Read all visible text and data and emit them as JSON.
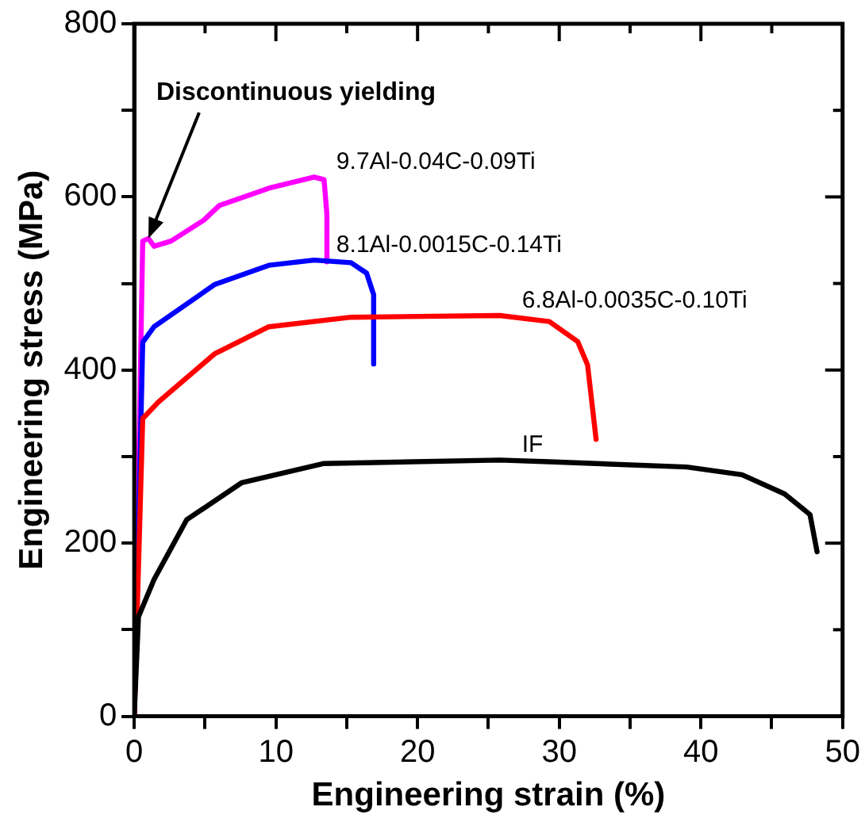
{
  "chart_data": {
    "type": "line",
    "xlabel": "Engineering strain (%)",
    "ylabel": "Engineering stress (MPa)",
    "xlim": [
      0,
      50
    ],
    "xticks": [
      0,
      {
        "value": 5,
        "label": null
      },
      10,
      {
        "value": 15,
        "label": null
      },
      20,
      {
        "value": 25,
        "label": null
      },
      30,
      {
        "value": 35,
        "label": null
      },
      40,
      {
        "value": 45,
        "label": null
      },
      50
    ],
    "ylim": [
      0,
      800
    ],
    "yticks": [
      0,
      {
        "value": 100,
        "label": null
      },
      200,
      {
        "value": 300,
        "label": null
      },
      400,
      {
        "value": 500,
        "label": null
      },
      600,
      {
        "value": 700,
        "label": null
      },
      800
    ],
    "grid": false,
    "legend": false,
    "marker": "none",
    "line_style": "solid",
    "annotations": [
      {
        "text": "Discontinuous yielding",
        "x": 1,
        "y": 552
      }
    ],
    "series": [
      {
        "name": "IF",
        "color": "#000000",
        "x": [
          0,
          0.3,
          1.4,
          3.7,
          7.6,
          13.4,
          25.8,
          29.3,
          39,
          42.9,
          45.9,
          47.7,
          48.2
        ],
        "values": [
          0,
          115,
          158,
          227,
          270,
          292,
          296,
          294,
          288,
          279,
          257,
          233,
          190
        ]
      },
      {
        "name": "6.8Al-0.0035C-0.10Ti",
        "color": "#ff0000",
        "x": [
          0,
          0.6,
          1.7,
          5.7,
          9.5,
          15.3,
          25.8,
          29.3,
          31.3,
          32,
          32.6
        ],
        "values": [
          0,
          344,
          363,
          419,
          450,
          461,
          463,
          456,
          433,
          406,
          320
        ]
      },
      {
        "name": "8.1Al-0.0015C-0.14Ti",
        "color": "#0000ff",
        "x": [
          0,
          0.6,
          1.4,
          5.7,
          9.5,
          12.7,
          15.3,
          16.4,
          16.9,
          16.9
        ],
        "values": [
          0,
          432,
          450,
          499,
          521,
          527,
          524,
          512,
          487,
          407
        ]
      },
      {
        "name": "9.7Al-0.04C-0.09Ti",
        "color": "#ff00ff",
        "x": [
          0,
          0.6,
          1,
          1.4,
          2.6,
          4.9,
          6,
          9.5,
          12.7,
          13.4,
          13.6,
          13.6
        ],
        "values": [
          0,
          549,
          552,
          543,
          549,
          573,
          590,
          610,
          623,
          620,
          580,
          525
        ]
      }
    ]
  }
}
